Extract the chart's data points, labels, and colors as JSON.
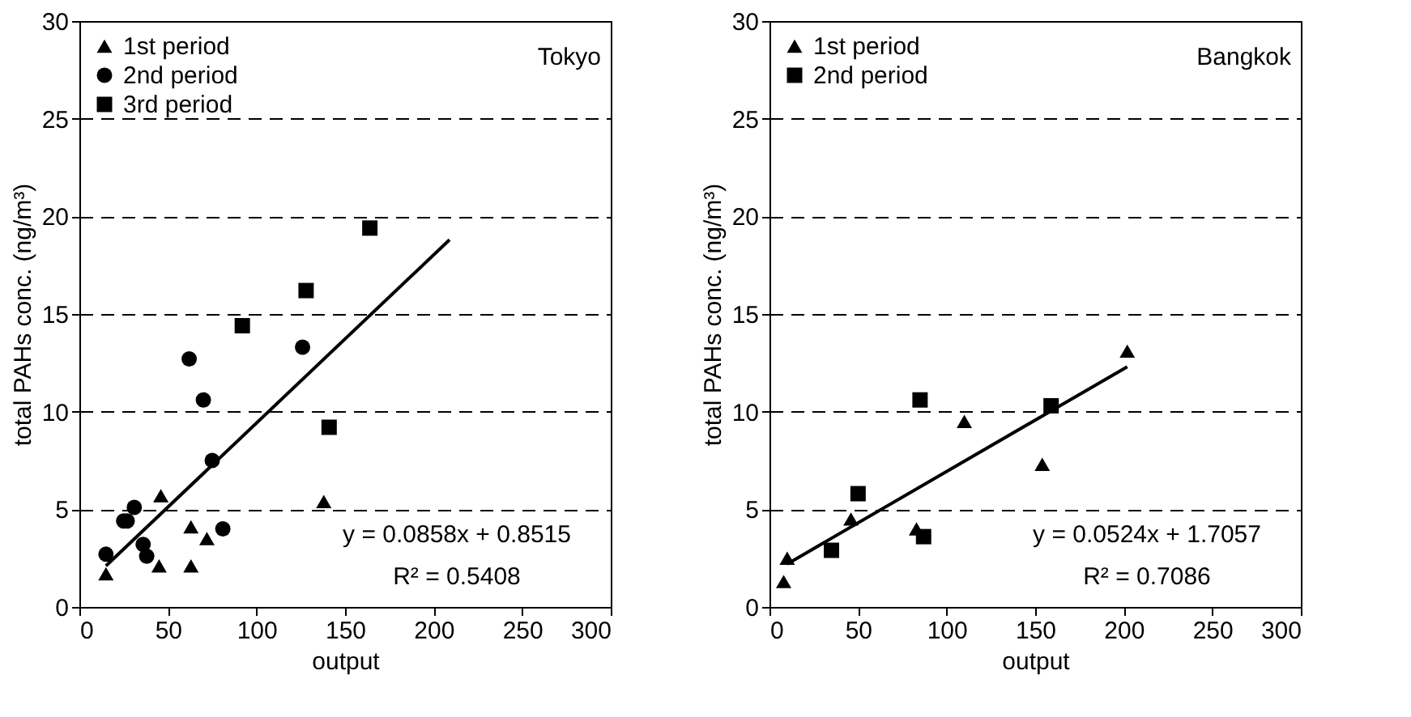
{
  "chart_data": [
    {
      "type": "scatter",
      "xlabel": "output",
      "ylabel": "total PAHs conc. (ng/m³)",
      "xlim": [
        0,
        300
      ],
      "xticks": [
        0,
        50,
        100,
        150,
        200,
        250,
        300
      ],
      "ylim": [
        0,
        30
      ],
      "yticks": [
        0,
        5,
        10,
        15,
        20,
        25,
        30
      ],
      "grid": "y",
      "legend": "top left",
      "annotations": [
        "Tokyo",
        "y = 0.0858x + 0.8515",
        "R² = 0.5408"
      ],
      "series": [
        {
          "name": "1st period",
          "color": "#000000",
          "marker": "triangle",
          "x": [
            15,
            46,
            45,
            63,
            63,
            72,
            138
          ],
          "values": [
            1.7,
            5.7,
            2.1,
            4.1,
            2.1,
            3.5,
            5.4
          ]
        },
        {
          "name": "2nd period",
          "color": "#000000",
          "marker": "circle",
          "x": [
            15,
            25,
            27,
            31,
            36,
            38,
            62,
            70,
            75,
            81,
            126
          ],
          "values": [
            2.7,
            4.4,
            4.4,
            5.1,
            3.2,
            2.6,
            12.7,
            10.6,
            7.5,
            4.0,
            13.3
          ]
        },
        {
          "name": "3rd period",
          "color": "#000000",
          "marker": "square",
          "x": [
            92,
            128,
            141,
            164
          ],
          "values": [
            14.4,
            16.2,
            9.2,
            19.4
          ]
        },
        {
          "type": "line",
          "color": "#000000",
          "line_style": "solid",
          "x": [
            15,
            209
          ],
          "values": [
            2.1,
            18.8
          ]
        }
      ]
    },
    {
      "type": "scatter",
      "xlabel": "output",
      "ylabel": "total PAHs conc. (ng/m³)",
      "xlim": [
        0,
        300
      ],
      "xticks": [
        0,
        50,
        100,
        150,
        200,
        250,
        300
      ],
      "ylim": [
        0,
        30
      ],
      "yticks": [
        0,
        5,
        10,
        15,
        20,
        25,
        30
      ],
      "grid": "y",
      "legend": "top left",
      "annotations": [
        "Bangkok",
        "y = 0.0524x + 1.7057",
        "R² = 0.7086"
      ],
      "series": [
        {
          "name": "1st period",
          "color": "#000000",
          "marker": "triangle",
          "x": [
            8,
            10,
            46,
            83,
            110,
            154,
            202
          ],
          "values": [
            1.3,
            2.5,
            4.5,
            4.0,
            9.5,
            7.3,
            13.1
          ]
        },
        {
          "name": "2nd period",
          "color": "#000000",
          "marker": "square",
          "x": [
            35,
            50,
            85,
            87,
            159
          ],
          "values": [
            2.9,
            5.8,
            10.6,
            3.6,
            10.3
          ]
        },
        {
          "type": "line",
          "color": "#000000",
          "line_style": "solid",
          "x": [
            10,
            202
          ],
          "values": [
            2.2,
            12.3
          ]
        }
      ]
    }
  ]
}
